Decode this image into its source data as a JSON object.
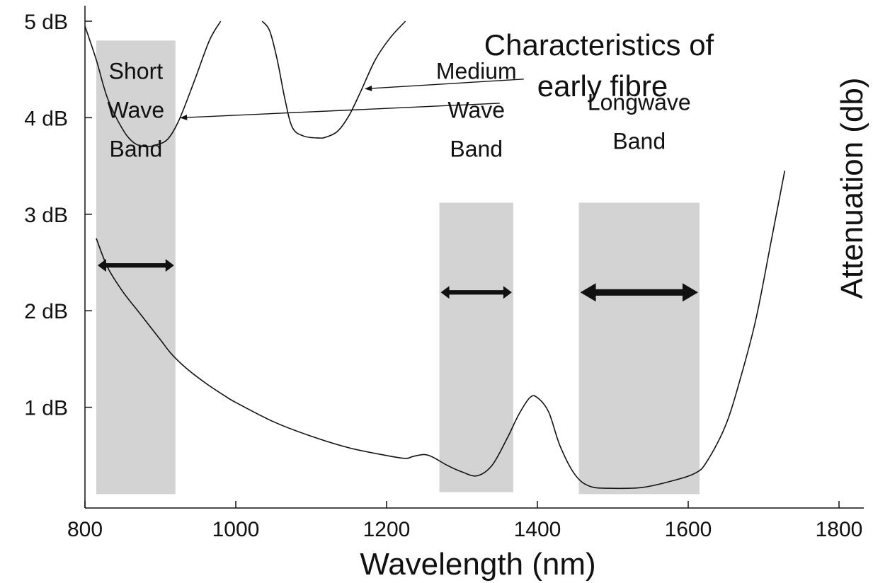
{
  "chart_data": {
    "type": "line",
    "xlabel": "Wavelength (nm)",
    "ylabel": "Attenuation (db)",
    "xlim": [
      800,
      1800
    ],
    "ylim": [
      0,
      5
    ],
    "x_ticks": [
      800,
      1000,
      1200,
      1400,
      1600,
      1800
    ],
    "x_tick_labels": [
      "800",
      "1000",
      "1200",
      "1400",
      "1600",
      "1800"
    ],
    "y_ticks": [
      1,
      2,
      3,
      4,
      5
    ],
    "y_tick_labels": [
      "1 dB",
      "2 dB",
      "3 dB",
      "4 dB",
      "5 dB"
    ],
    "grid": false,
    "bands": [
      {
        "label_lines": [
          "Short",
          "Wave",
          "Band"
        ],
        "x_range": [
          815,
          920
        ],
        "y_range": [
          0.1,
          4.8
        ],
        "arrow": [
          815,
          920
        ]
      },
      {
        "label_lines": [
          "Medium",
          "Wave",
          "Band"
        ],
        "x_range": [
          1270,
          1368
        ],
        "y_range": [
          0.12,
          3.12
        ],
        "arrow": [
          1270,
          1368
        ]
      },
      {
        "label_lines": [
          "Longwave",
          "Band"
        ],
        "x_range": [
          1455,
          1615
        ],
        "y_range": [
          0.1,
          3.12
        ],
        "arrow": [
          1455,
          1615
        ]
      }
    ],
    "series": [
      {
        "x": [
          815,
          830,
          850,
          870,
          880,
          900,
          915,
          935,
          960,
          985,
          1000,
          1050,
          1100,
          1150,
          1200,
          1225,
          1235,
          1250,
          1262,
          1280,
          1300,
          1320,
          1340,
          1360,
          1375,
          1390,
          1400,
          1415,
          1430,
          1450,
          1470,
          1500,
          1540,
          1580,
          1610,
          1625,
          1650,
          1670,
          1690,
          1710,
          1728
        ],
        "y": [
          2.75,
          2.45,
          2.2,
          2.0,
          1.9,
          1.7,
          1.55,
          1.4,
          1.25,
          1.12,
          1.05,
          0.85,
          0.7,
          0.58,
          0.5,
          0.47,
          0.49,
          0.51,
          0.48,
          0.4,
          0.33,
          0.29,
          0.4,
          0.68,
          0.92,
          1.1,
          1.1,
          0.95,
          0.6,
          0.3,
          0.18,
          0.16,
          0.17,
          0.24,
          0.32,
          0.44,
          0.82,
          1.32,
          1.92,
          2.72,
          3.45
        ]
      },
      {
        "x": [
          800,
          815,
          830,
          850,
          865,
          880,
          895,
          910,
          925,
          945,
          965,
          980
        ],
        "y": [
          4.95,
          4.6,
          4.2,
          3.88,
          3.74,
          3.7,
          3.72,
          3.78,
          3.98,
          4.38,
          4.8,
          5.0
        ]
      },
      {
        "x": [
          1035,
          1045,
          1055,
          1065,
          1075,
          1090,
          1110,
          1120,
          1135,
          1150,
          1165,
          1185,
          1205,
          1225
        ],
        "y": [
          5.0,
          4.9,
          4.6,
          4.2,
          3.9,
          3.81,
          3.79,
          3.8,
          3.86,
          4.02,
          4.26,
          4.6,
          4.83,
          5.0
        ]
      }
    ],
    "annotation": {
      "lines": [
        "Characteristics of",
        "early fibre"
      ],
      "arrows": [
        {
          "from": [
            1382,
            4.4
          ],
          "to": [
            1172,
            4.3
          ]
        },
        {
          "from": [
            1350,
            4.15
          ],
          "to": [
            927,
            4.0
          ]
        }
      ]
    }
  }
}
